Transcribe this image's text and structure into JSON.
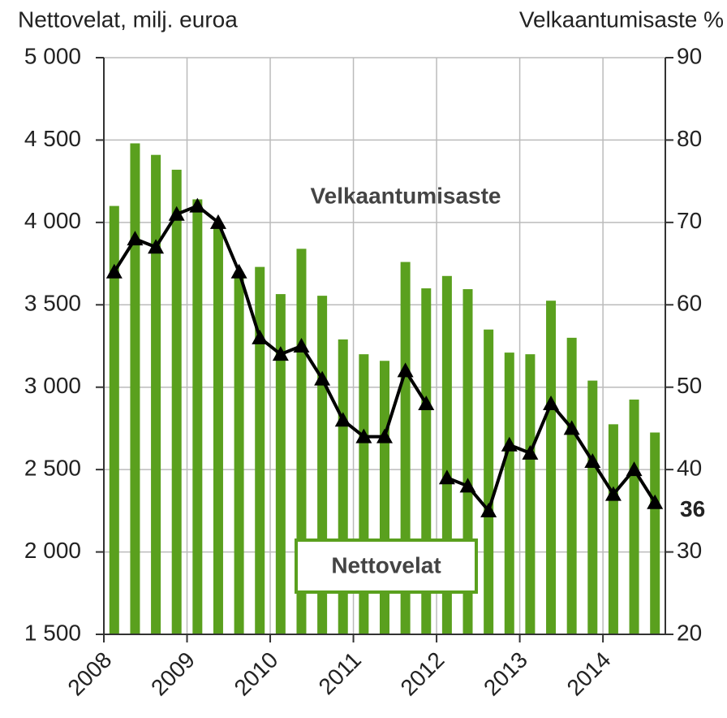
{
  "chart_data": {
    "type": "bar_line",
    "left_axis_label": "Nettovelat, milj. euroa",
    "right_axis_label": "Velkaantumisaste %",
    "annotations": [
      "Velkaantumisaste",
      "Nettovelat"
    ],
    "x": [
      2008.125,
      2008.375,
      2008.625,
      2008.875,
      2009.125,
      2009.375,
      2009.625,
      2009.875,
      2010.125,
      2010.375,
      2010.625,
      2010.875,
      2011.125,
      2011.375,
      2011.625,
      2011.875,
      2012.125,
      2012.375,
      2012.625,
      2012.875,
      2013.125,
      2013.375,
      2013.625,
      2013.875,
      2014.125,
      2014.375,
      2014.625
    ],
    "xlim": [
      2008,
      2014.75
    ],
    "xticks": [
      2008,
      2009,
      2010,
      2011,
      2012,
      2013,
      2014
    ],
    "ylim": [
      1500,
      5000
    ],
    "yticks": [
      {
        "value": 1500,
        "label": "1 500"
      },
      {
        "value": 2000,
        "label": "2 000"
      },
      {
        "value": 2500,
        "label": "2 500"
      },
      {
        "value": 3000,
        "label": "3 000"
      },
      {
        "value": 3500,
        "label": "3 500"
      },
      {
        "value": 4000,
        "label": "4 000"
      },
      {
        "value": 4500,
        "label": "4 500"
      },
      {
        "value": 5000,
        "label": "5 000"
      }
    ],
    "y2lim": [
      20,
      90
    ],
    "y2ticks": [
      20,
      30,
      40,
      50,
      60,
      70,
      80,
      90
    ],
    "grid": true,
    "series": [
      {
        "name": "Nettovelat",
        "type": "bar",
        "color": "#5aa01e",
        "values": [
          4100,
          4480,
          4410,
          4320,
          4140,
          3990,
          3700,
          3730,
          3565,
          3840,
          3555,
          3290,
          3200,
          3160,
          3760,
          3600,
          3675,
          3595,
          3350,
          3210,
          3200,
          3525,
          3300,
          3040,
          2775,
          2925,
          2725
        ]
      },
      {
        "name": "Velkaantumisaste",
        "type": "line",
        "axis": "y2",
        "color": "#000000",
        "values": [
          64,
          68,
          67,
          71,
          72,
          70,
          64,
          56,
          54,
          55,
          51,
          46,
          44,
          44,
          52,
          48,
          null,
          null,
          null,
          null,
          null,
          null,
          null,
          null,
          null,
          null,
          null
        ]
      },
      {
        "type": "line",
        "axis": "y2",
        "color": "#000000",
        "values": [
          null,
          null,
          null,
          null,
          null,
          null,
          null,
          null,
          null,
          null,
          null,
          null,
          null,
          null,
          null,
          null,
          39,
          38,
          35,
          43,
          42,
          48,
          45,
          41,
          37,
          40,
          36
        ],
        "value_labels": [
          null,
          null,
          null,
          null,
          null,
          null,
          null,
          null,
          null,
          null,
          null,
          null,
          null,
          null,
          null,
          null,
          null,
          null,
          null,
          null,
          null,
          null,
          null,
          null,
          null,
          null,
          "36"
        ]
      }
    ]
  }
}
